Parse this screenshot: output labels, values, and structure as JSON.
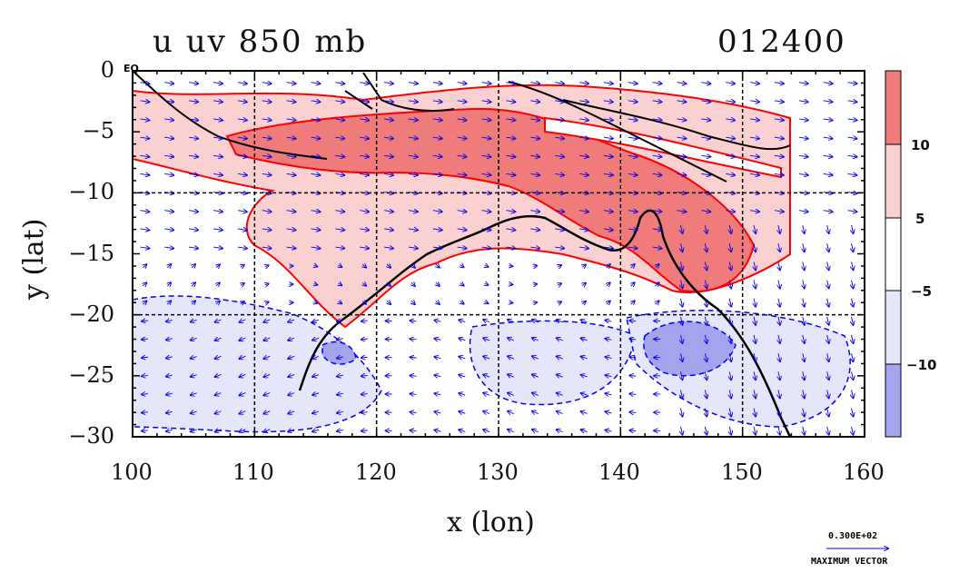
{
  "title_left": "u uv 850 mb",
  "title_right": "012400",
  "xlabel": "x (lon)",
  "ylabel": "y (lat)",
  "equator_label": "EQ",
  "x_ticks": [
    "100",
    "110",
    "120",
    "130",
    "140",
    "150",
    "160"
  ],
  "y_ticks": [
    "0",
    "−5",
    "−10",
    "−15",
    "−20",
    "−25",
    "−30"
  ],
  "colorbar": {
    "labels": [
      "10",
      "5",
      "−5",
      "−10"
    ],
    "colors": [
      "#f07b7b",
      "#fbd0d0",
      "#ffffff",
      "#e6e6fb",
      "#a3a3ee"
    ]
  },
  "max_vector": {
    "value": "0.300E+02",
    "label": "MAXIMUM VECTOR"
  },
  "colors": {
    "positive_contour": "#ff0000",
    "negative_contour": "#0000ff",
    "vectors": "#0000ee",
    "coast": "#000000",
    "grid": "#000000"
  },
  "map": {
    "lon_range": [
      100,
      160
    ],
    "lat_range": [
      -30,
      0
    ],
    "grid_lon": [
      110,
      120,
      130,
      140,
      150
    ],
    "grid_lat": [
      -10,
      -20
    ]
  }
}
